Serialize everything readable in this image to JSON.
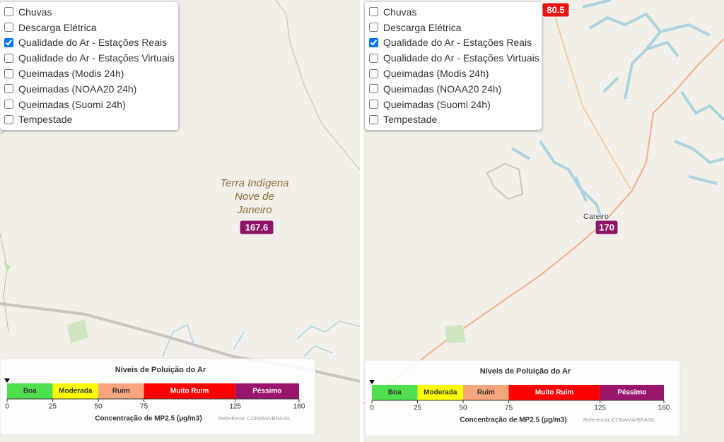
{
  "panels": [
    {
      "layers": [
        {
          "label": "Chuvas",
          "checked": false
        },
        {
          "label": "Descarga Elétrica",
          "checked": false
        },
        {
          "label": "Qualidade do Ar - Estações Reais",
          "checked": true
        },
        {
          "label": "Qualidade do Ar - Estações Virtuais",
          "checked": false
        },
        {
          "label": "Queimadas (Modis 24h)",
          "checked": false
        },
        {
          "label": "Queimadas (NOAA20 24h)",
          "checked": false
        },
        {
          "label": "Queimadas (Suomi 24h)",
          "checked": false
        },
        {
          "label": "Tempestade",
          "checked": false
        }
      ],
      "map_labels": [
        {
          "lines": [
            "Terra Indígena",
            "Nove de",
            "Janeiro"
          ]
        }
      ],
      "badges": [
        {
          "value": 167.6,
          "color": "#8e1466"
        }
      ],
      "legend": {
        "title": "Níveis de Poluição do Ar",
        "xlim": [
          0,
          160
        ],
        "ticks": [
          0,
          25,
          50,
          75,
          125,
          160
        ],
        "segments": [
          {
            "label": "Boa",
            "color": "#4fe04f"
          },
          {
            "label": "Moderada",
            "color": "#ffff00"
          },
          {
            "label": "Ruim",
            "color": "#f6a57c"
          },
          {
            "label": "Muito Ruim",
            "color": "#ff0000"
          },
          {
            "label": "Péssimo",
            "color": "#99166c"
          }
        ],
        "xlabel": "Concentração de MP2.5 (µg/m3)",
        "reference": "Referência: CONAMA/BRASIL"
      }
    },
    {
      "layers": [
        {
          "label": "Chuvas",
          "checked": false
        },
        {
          "label": "Descarga Elétrica",
          "checked": false
        },
        {
          "label": "Qualidade do Ar - Estações Reais",
          "checked": true
        },
        {
          "label": "Qualidade do Ar - Estações Virtuais",
          "checked": false
        },
        {
          "label": "Queimadas (Modis 24h)",
          "checked": false
        },
        {
          "label": "Queimadas (NOAA20 24h)",
          "checked": false
        },
        {
          "label": "Queimadas (Suomi 24h)",
          "checked": false
        },
        {
          "label": "Tempestade",
          "checked": false
        }
      ],
      "map_labels": [
        {
          "lines": [
            "Careiro"
          ]
        }
      ],
      "badges": [
        {
          "value": 80.5,
          "color": "#ee1111"
        },
        {
          "value": 170,
          "color": "#8e1466"
        }
      ],
      "legend": {
        "title": "Níveis de Poluição do Ar",
        "xlim": [
          0,
          160
        ],
        "ticks": [
          0,
          25,
          50,
          75,
          125,
          160
        ],
        "segments": [
          {
            "label": "Boa",
            "color": "#4fe04f"
          },
          {
            "label": "Moderada",
            "color": "#ffff00"
          },
          {
            "label": "Ruim",
            "color": "#f6a57c"
          },
          {
            "label": "Muito Ruim",
            "color": "#ff0000"
          },
          {
            "label": "Péssimo",
            "color": "#99166c"
          }
        ],
        "xlabel": "Concentração de MP2.5 (µg/m3)",
        "reference": "Referência: CONAMA/BRASIL"
      }
    }
  ]
}
